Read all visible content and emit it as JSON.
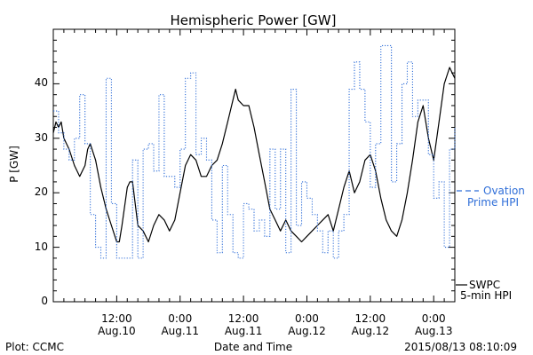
{
  "chart_data": {
    "type": "line",
    "title": "Hemispheric Power [GW]",
    "xlabel": "Date and Time",
    "ylabel": "P [GW]",
    "ylim": [
      0,
      50
    ],
    "xlim": [
      0,
      76
    ],
    "y_ticks": [
      0,
      10,
      20,
      30,
      40
    ],
    "x_ticks": [
      {
        "hour": 12,
        "time": "12:00",
        "date": "Aug.10"
      },
      {
        "hour": 24,
        "time": "0:00",
        "date": "Aug.11"
      },
      {
        "hour": 36,
        "time": "12:00",
        "date": "Aug.11"
      },
      {
        "hour": 48,
        "time": "0:00",
        "date": "Aug.12"
      },
      {
        "hour": 60,
        "time": "12:00",
        "date": "Aug.12"
      },
      {
        "hour": 72,
        "time": "0:00",
        "date": "Aug.13"
      }
    ],
    "series": [
      {
        "name": "SWPC 5-min HPI",
        "legend_line1": "SWPC",
        "legend_line2": "5-min HPI",
        "style": "solid",
        "color": "#000000",
        "points": [
          [
            0,
            31
          ],
          [
            0.5,
            33
          ],
          [
            1,
            32
          ],
          [
            1.5,
            33
          ],
          [
            2,
            30
          ],
          [
            3,
            28
          ],
          [
            4,
            25
          ],
          [
            5,
            23
          ],
          [
            6,
            25
          ],
          [
            6.5,
            28
          ],
          [
            7,
            29
          ],
          [
            8,
            26
          ],
          [
            9,
            21
          ],
          [
            10,
            17
          ],
          [
            11,
            14
          ],
          [
            12,
            11
          ],
          [
            12.5,
            11
          ],
          [
            13,
            14
          ],
          [
            14,
            21
          ],
          [
            14.5,
            22
          ],
          [
            15,
            22
          ],
          [
            15.5,
            18
          ],
          [
            16,
            14
          ],
          [
            17,
            13
          ],
          [
            18,
            11
          ],
          [
            19,
            14
          ],
          [
            20,
            16
          ],
          [
            21,
            15
          ],
          [
            22,
            13
          ],
          [
            23,
            15
          ],
          [
            24,
            20
          ],
          [
            25,
            25
          ],
          [
            26,
            27
          ],
          [
            27,
            26
          ],
          [
            28,
            23
          ],
          [
            29,
            23
          ],
          [
            30,
            25
          ],
          [
            31,
            26
          ],
          [
            32,
            29
          ],
          [
            33,
            33
          ],
          [
            34,
            37
          ],
          [
            34.5,
            39
          ],
          [
            35,
            37
          ],
          [
            36,
            36
          ],
          [
            37,
            36
          ],
          [
            38,
            32
          ],
          [
            39,
            27
          ],
          [
            40,
            22
          ],
          [
            41,
            17
          ],
          [
            42,
            15
          ],
          [
            43,
            13
          ],
          [
            44,
            15
          ],
          [
            45,
            13
          ],
          [
            46,
            12
          ],
          [
            47,
            11
          ],
          [
            48,
            12
          ],
          [
            49,
            13
          ],
          [
            50,
            14
          ],
          [
            51,
            15
          ],
          [
            52,
            16
          ],
          [
            53,
            13
          ],
          [
            54,
            17
          ],
          [
            55,
            21
          ],
          [
            56,
            24
          ],
          [
            57,
            20
          ],
          [
            58,
            22
          ],
          [
            59,
            26
          ],
          [
            60,
            27
          ],
          [
            61,
            24
          ],
          [
            62,
            19
          ],
          [
            63,
            15
          ],
          [
            64,
            13
          ],
          [
            65,
            12
          ],
          [
            66,
            15
          ],
          [
            67,
            20
          ],
          [
            68,
            26
          ],
          [
            69,
            33
          ],
          [
            70,
            36
          ],
          [
            71,
            30
          ],
          [
            72,
            26
          ],
          [
            73,
            33
          ],
          [
            74,
            40
          ],
          [
            75,
            43
          ],
          [
            76,
            41
          ]
        ]
      },
      {
        "name": "Ovation Prime HPI",
        "legend_line1": "Ovation",
        "legend_line2": "Prime HPI",
        "style": "dotted-step",
        "color": "#2f6ed8",
        "points": [
          [
            0,
            35
          ],
          [
            1,
            31
          ],
          [
            2,
            28
          ],
          [
            3,
            26
          ],
          [
            4,
            30
          ],
          [
            5,
            38
          ],
          [
            6,
            29
          ],
          [
            7,
            16
          ],
          [
            8,
            10
          ],
          [
            9,
            8
          ],
          [
            10,
            41
          ],
          [
            11,
            18
          ],
          [
            12,
            8
          ],
          [
            13,
            8
          ],
          [
            14,
            8
          ],
          [
            15,
            26
          ],
          [
            16,
            8
          ],
          [
            17,
            28
          ],
          [
            18,
            29
          ],
          [
            19,
            24
          ],
          [
            20,
            38
          ],
          [
            21,
            23
          ],
          [
            22,
            23
          ],
          [
            23,
            21
          ],
          [
            24,
            28
          ],
          [
            25,
            41
          ],
          [
            26,
            42
          ],
          [
            27,
            27
          ],
          [
            28,
            30
          ],
          [
            29,
            26
          ],
          [
            30,
            15
          ],
          [
            31,
            9
          ],
          [
            32,
            25
          ],
          [
            33,
            16
          ],
          [
            34,
            9
          ],
          [
            35,
            8
          ],
          [
            36,
            18
          ],
          [
            37,
            17
          ],
          [
            38,
            13
          ],
          [
            39,
            15
          ],
          [
            40,
            12
          ],
          [
            41,
            28
          ],
          [
            42,
            17
          ],
          [
            43,
            28
          ],
          [
            44,
            9
          ],
          [
            45,
            39
          ],
          [
            46,
            14
          ],
          [
            47,
            22
          ],
          [
            48,
            19
          ],
          [
            49,
            16
          ],
          [
            50,
            13
          ],
          [
            51,
            9
          ],
          [
            52,
            13
          ],
          [
            53,
            8
          ],
          [
            54,
            13
          ],
          [
            55,
            16
          ],
          [
            56,
            39
          ],
          [
            57,
            44
          ],
          [
            58,
            39
          ],
          [
            59,
            33
          ],
          [
            60,
            21
          ],
          [
            61,
            29
          ],
          [
            62,
            47
          ],
          [
            63,
            47
          ],
          [
            64,
            22
          ],
          [
            65,
            29
          ],
          [
            66,
            40
          ],
          [
            67,
            44
          ],
          [
            68,
            34
          ],
          [
            69,
            37
          ],
          [
            70,
            37
          ],
          [
            71,
            27
          ],
          [
            72,
            19
          ],
          [
            73,
            22
          ],
          [
            74,
            10
          ],
          [
            75,
            28
          ],
          [
            76,
            32
          ]
        ]
      }
    ]
  },
  "footer": {
    "plot_credit": "Plot: CCMC",
    "timestamp": "2015/08/13 08:10:09"
  }
}
